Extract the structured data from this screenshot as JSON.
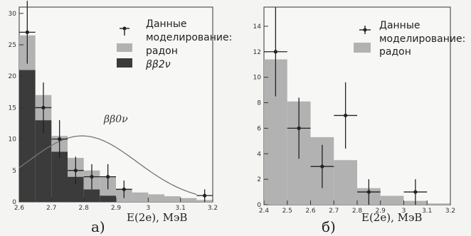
{
  "chart_data": [
    {
      "type": "bar",
      "panel_label": "a)",
      "xlabel": "E(2e), МэВ",
      "ylabel": "",
      "xlim": [
        2.6,
        3.2
      ],
      "ylim": [
        0,
        31
      ],
      "xticks": [
        "2.6",
        "2.7",
        "2.8",
        "2.9",
        "3",
        "3.1",
        "3.2"
      ],
      "yticks": [
        "0",
        "5",
        "10",
        "15",
        "20",
        "25",
        "30"
      ],
      "bin_edges": [
        2.6,
        2.65,
        2.7,
        2.75,
        2.8,
        2.85,
        2.9,
        2.95,
        3.0,
        3.05,
        3.1,
        3.15,
        3.2
      ],
      "legend": {
        "position": "top-right",
        "data_label": "Данные",
        "model_label": "моделирование:",
        "radon_label": "радон",
        "bb2v_label": "ββ2ν"
      },
      "series": [
        {
          "name": "ββ2ν",
          "color": "#3b3b3b",
          "values": [
            21,
            13,
            8,
            4,
            2,
            1,
            0,
            0,
            0,
            0,
            0,
            0
          ]
        },
        {
          "name": "радон",
          "color": "#b2b2b2",
          "values": [
            5.5,
            4,
            2.5,
            3,
            3,
            3,
            2,
            1.5,
            1.2,
            0.9,
            0.6,
            0.3
          ]
        }
      ],
      "data_points": [
        {
          "x": 2.625,
          "y": 27,
          "yerr": 5
        },
        {
          "x": 2.675,
          "y": 15,
          "yerr": 4
        },
        {
          "x": 2.725,
          "y": 10,
          "yerr": 3
        },
        {
          "x": 2.775,
          "y": 5,
          "yerr": 2.2
        },
        {
          "x": 2.825,
          "y": 4,
          "yerr": 2
        },
        {
          "x": 2.875,
          "y": 4,
          "yerr": 2
        },
        {
          "x": 2.925,
          "y": 2,
          "yerr": 1.4
        },
        {
          "x": 3.175,
          "y": 1,
          "yerr": 1
        }
      ],
      "curve": {
        "label": "ββ0ν",
        "color": "#777777",
        "peak_x": 2.795,
        "peak_y": 10.5,
        "sigma": 0.17,
        "x_end": 3.15
      }
    },
    {
      "type": "bar",
      "panel_label": "б)",
      "xlabel": "E(2e), МэВ",
      "ylabel": "",
      "xlim": [
        2.4,
        3.2
      ],
      "ylim": [
        0,
        15.5
      ],
      "xticks": [
        "2.4",
        "2.5",
        "2.6",
        "2.7",
        "2.8",
        "2.9",
        "3",
        "3.1",
        "3.2"
      ],
      "yticks": [
        "0",
        "2",
        "4",
        "6",
        "8",
        "10",
        "12",
        "14"
      ],
      "bin_edges": [
        2.4,
        2.5,
        2.6,
        2.7,
        2.8,
        2.9,
        3.0,
        3.1,
        3.2
      ],
      "legend": {
        "position": "top-right",
        "data_label": "Данные",
        "model_label": "моделирование:",
        "radon_label": "радон"
      },
      "series": [
        {
          "name": "радон",
          "color": "#b2b2b2",
          "values": [
            11.4,
            8.1,
            5.3,
            3.5,
            1.3,
            0.7,
            0.3,
            0.1
          ]
        }
      ],
      "data_points": [
        {
          "x": 2.45,
          "y": 12,
          "yerr": 3.5
        },
        {
          "x": 2.55,
          "y": 6,
          "yerr": 2.4
        },
        {
          "x": 2.65,
          "y": 3,
          "yerr": 1.7
        },
        {
          "x": 2.75,
          "y": 7,
          "yerr": 2.6
        },
        {
          "x": 2.85,
          "y": 1,
          "yerr": 1
        },
        {
          "x": 3.05,
          "y": 1,
          "yerr": 1
        }
      ]
    }
  ]
}
